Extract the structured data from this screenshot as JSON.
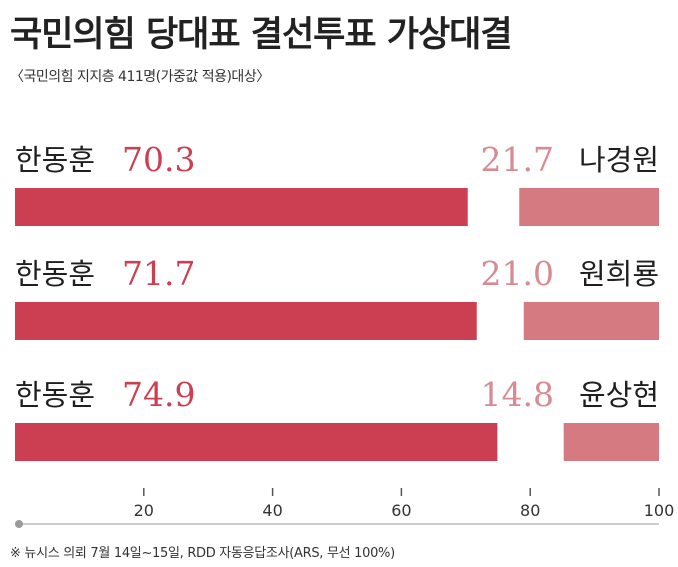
{
  "title": "국민의힘 당대표 결선투표 가상대결",
  "subtitle": "〈국민의힘 지지층 411명(가중값 적용)대상〉",
  "note": "※ 뉴시스 의뢰 7월 14일~15일, RDD 자동응답조사(ARS, 무선 100%)",
  "colors": {
    "left_bar": "#cc3f52",
    "right_bar": "#d47a80",
    "left_value": "#cc3f52",
    "right_value": "#d88a92"
  },
  "chart_data": {
    "type": "bar",
    "orientation": "horizontal-stacked",
    "xlim": [
      0,
      100
    ],
    "xticks": [
      20,
      40,
      60,
      80,
      100
    ],
    "categories": [
      "한동훈 vs 나경원",
      "한동훈 vs 원희룡",
      "한동훈 vs 윤상현"
    ],
    "matchups": [
      {
        "left_name": "한동훈",
        "left_value": 70.3,
        "right_name": "나경원",
        "right_value": 21.7,
        "left_label": "70.3",
        "right_label": "21.7"
      },
      {
        "left_name": "한동훈",
        "left_value": 71.7,
        "right_name": "원희룡",
        "right_value": 21.0,
        "left_label": "71.7",
        "right_label": "21.0"
      },
      {
        "left_name": "한동훈",
        "left_value": 74.9,
        "right_name": "윤상현",
        "right_value": 14.8,
        "left_label": "74.9",
        "right_label": "14.8"
      }
    ]
  }
}
